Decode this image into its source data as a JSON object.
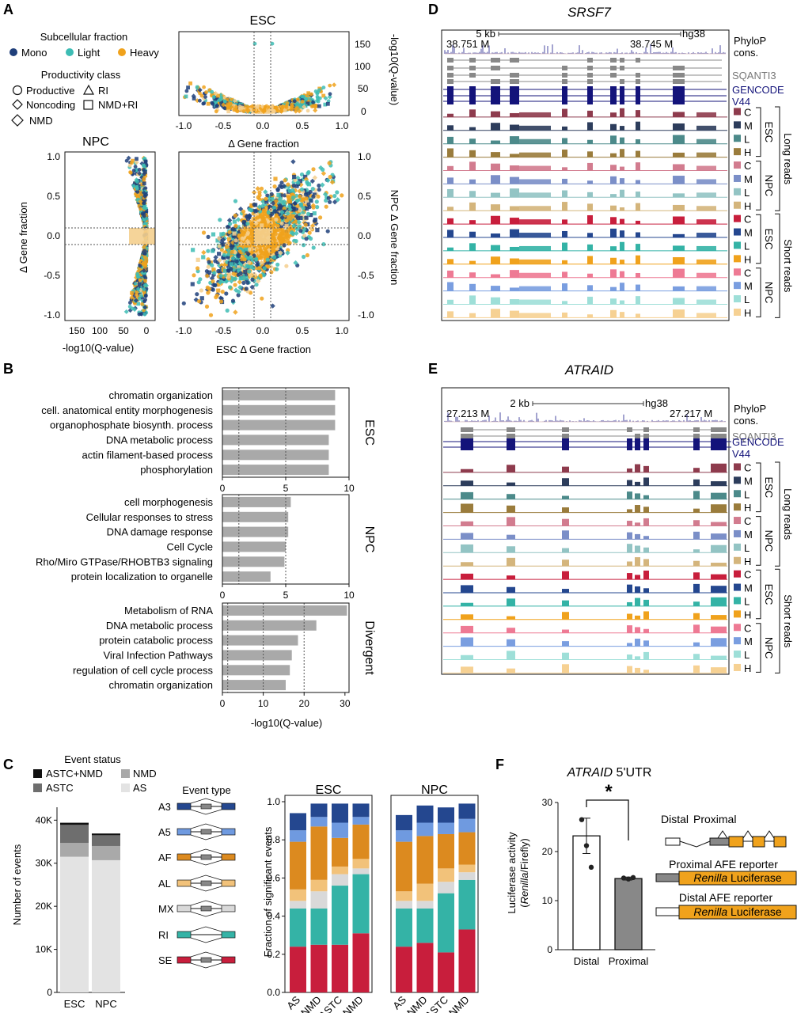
{
  "panel_letters": {
    "A": "A",
    "B": "B",
    "C": "C",
    "D": "D",
    "E": "E",
    "F": "F"
  },
  "colors": {
    "mono": "#1f3f7a",
    "light": "#3dbcb4",
    "heavy": "#f0a21c",
    "pale": "#f4cf8e",
    "grey_bar": "#a9a9a9",
    "c_esc_lr": "#8e3b4d",
    "m_esc_lr": "#2d3d5c",
    "l_esc_lr": "#4c8a8a",
    "h_esc_lr": "#9a7c3c",
    "c_npc_lr": "#d27c8f",
    "m_npc_lr": "#7b8fc8",
    "l_npc_lr": "#93c4c4",
    "h_npc_lr": "#d4b57c",
    "c_esc_sr": "#c81e3c",
    "m_esc_sr": "#24478f",
    "l_esc_sr": "#34b3a6",
    "h_esc_sr": "#f0a21c",
    "c_npc_sr": "#ee7a94",
    "m_npc_sr": "#7a9ee0",
    "l_npc_sr": "#9edfd8",
    "h_npc_sr": "#f6d193"
  },
  "panelA": {
    "legend_fraction_title": "Subcellular fraction",
    "fractions": [
      "Mono",
      "Light",
      "Heavy"
    ],
    "legend_class_title": "Productivity class",
    "classes": [
      "Productive",
      "RI",
      "Noncoding",
      "NMD+RI",
      "NMD"
    ],
    "top_title": "ESC",
    "top_xlabel": "Δ Gene fraction",
    "top_ylabel": "-log10(Q-value)",
    "top_yticks": [
      "150",
      "100",
      "50",
      "0"
    ],
    "xticks": [
      "-1.0",
      "-0.5",
      "0.0",
      "0.5",
      "1.0"
    ],
    "left_title": "NPC",
    "left_ylabel": "Δ Gene fraction",
    "left_xlabel": "-log10(Q-value)",
    "left_xticks": [
      "150",
      "100",
      "50",
      "0"
    ],
    "yticks": [
      "1.0",
      "0.5",
      "0.0",
      "-0.5",
      "-1.0"
    ],
    "main_xlabel": "ESC Δ Gene fraction",
    "main_ylabel": "NPC Δ Gene fraction"
  },
  "panelB": {
    "xlabel": "-log10(Q-value)",
    "groups": [
      {
        "name": "ESC",
        "xlim": [
          0,
          10
        ],
        "xticks": [
          "0",
          "5",
          "10"
        ],
        "dotted": [
          1.3,
          5
        ],
        "terms": [
          "chromatin organization",
          "cell. anatomical entity morphogenesis",
          "organophosphate biosynth. process",
          "DNA metabolic process",
          "actin filament-based process",
          "phosphorylation"
        ],
        "values": [
          8.9,
          8.9,
          8.9,
          8.4,
          8.4,
          8.4
        ]
      },
      {
        "name": "NPC",
        "xlim": [
          0,
          10
        ],
        "xticks": [
          "0",
          "5",
          "10"
        ],
        "dotted": [
          1.3,
          5
        ],
        "terms": [
          "cell morphogenesis",
          "Cellular responses to stress",
          "DNA damage response",
          "Cell Cycle",
          "Rho/Miro GTPase/RHOBTB3 signaling",
          "protein localization to organelle"
        ],
        "values": [
          5.4,
          5.2,
          5.2,
          5.0,
          4.9,
          3.8
        ]
      },
      {
        "name": "Divergent",
        "xlim": [
          0,
          31
        ],
        "xticks": [
          "0",
          "10",
          "20",
          "30"
        ],
        "dotted": [
          1.3,
          10,
          20
        ],
        "terms": [
          "Metabolism of RNA",
          "DNA metabolic process",
          "protein catabolic process",
          "Viral Infection Pathways",
          "regulation of cell cycle process",
          "chromatin organization"
        ],
        "values": [
          30.5,
          23,
          18.5,
          17,
          16.5,
          15.5
        ]
      }
    ]
  },
  "panelC": {
    "status_title": "Event status",
    "status": [
      "ASTC+NMD",
      "NMD",
      "ASTC",
      "AS"
    ],
    "status_colors": [
      "#111111",
      "#a9a9a9",
      "#6e6e6e",
      "#e3e3e3"
    ],
    "count_ylabel": "Number of events",
    "count_yticks": [
      "40K",
      "30K",
      "20K",
      "10K",
      "0"
    ],
    "count_categories": [
      "ESC",
      "NPC"
    ],
    "count_stacks": [
      {
        "AS": 31500,
        "NMD": 3200,
        "ASTC": 4200,
        "ASTC+NMD": 500
      },
      {
        "AS": 30700,
        "NMD": 3300,
        "ASTC": 2500,
        "ASTC+NMD": 400
      }
    ],
    "type_title": "Event type",
    "types": [
      "A3",
      "A5",
      "AF",
      "AL",
      "MX",
      "RI",
      "SE"
    ],
    "type_colors": [
      "#24478f",
      "#6f9ae0",
      "#dc8a1f",
      "#f2c27a",
      "#d9d9d9",
      "#34b3a6",
      "#c81e3c"
    ],
    "frac_ylabel": "Fraction of significant events",
    "frac_yticks": [
      "1.0",
      "0.8",
      "0.6",
      "0.4",
      "0.2",
      "0.0"
    ],
    "frac_categories": [
      "AS",
      "NMD",
      "ASTC",
      "ASTC+NMD"
    ],
    "groups": [
      {
        "name": "ESC",
        "stacks": [
          [
            0.24,
            0.2,
            0.04,
            0.06,
            0.25,
            0.06,
            0.09
          ],
          [
            0.25,
            0.19,
            0.09,
            0.06,
            0.28,
            0.05,
            0.07
          ],
          [
            0.25,
            0.31,
            0.06,
            0.04,
            0.15,
            0.08,
            0.1
          ],
          [
            0.31,
            0.31,
            0.03,
            0.05,
            0.18,
            0.04,
            0.07
          ]
        ]
      },
      {
        "name": "NPC",
        "stacks": [
          [
            0.24,
            0.2,
            0.04,
            0.05,
            0.26,
            0.06,
            0.08
          ],
          [
            0.26,
            0.18,
            0.04,
            0.09,
            0.25,
            0.07,
            0.09
          ],
          [
            0.21,
            0.31,
            0.06,
            0.07,
            0.18,
            0.06,
            0.08
          ],
          [
            0.33,
            0.26,
            0.04,
            0.04,
            0.17,
            0.07,
            0.08
          ]
        ]
      }
    ]
  },
  "panelD": {
    "gene": "SRSF7",
    "scale": "5 kb",
    "assembly": "hg38",
    "coord_left": "38.751 M",
    "coord_right": "38.745 M",
    "phylop": "PhyloP",
    "cons": "cons.",
    "sqanti": "SQANTI3",
    "gencode": "GENCODE",
    "gencode_v": "V44",
    "long_reads": "Long reads",
    "short_reads": "Short reads",
    "esc": "ESC",
    "npc": "NPC",
    "track_letters": [
      "C",
      "M",
      "L",
      "H"
    ]
  },
  "panelE": {
    "gene": "ATRAID",
    "scale": "2 kb",
    "assembly": "hg38",
    "coord_left": "27.213 M",
    "coord_right": "27.217 M"
  },
  "panelF": {
    "title_gene": "ATRAID",
    "title_suffix": " 5'UTR",
    "star": "*",
    "ylabel": "Luciferase activity",
    "ylabel2_a": "(",
    "ylabel2_renilla": "Renilla",
    "ylabel2_b": "/Firefly)",
    "yticks": [
      "30",
      "20",
      "10",
      "0"
    ],
    "ylim": [
      0,
      30
    ],
    "categories": [
      "Distal",
      "Proximal"
    ],
    "values": [
      23.2,
      14.5
    ],
    "errors": [
      3.6,
      0.3
    ],
    "points": [
      [
        26.5,
        21.2,
        16.8
      ],
      [
        14.6,
        14.4,
        14.7
      ]
    ],
    "diag_distal": "Distal",
    "diag_proximal": "Proximal",
    "prox_reporter": "Proximal AFE reporter",
    "dist_reporter": "Distal AFE reporter",
    "renilla": "Renilla",
    "luciferase": " Luciferase"
  }
}
